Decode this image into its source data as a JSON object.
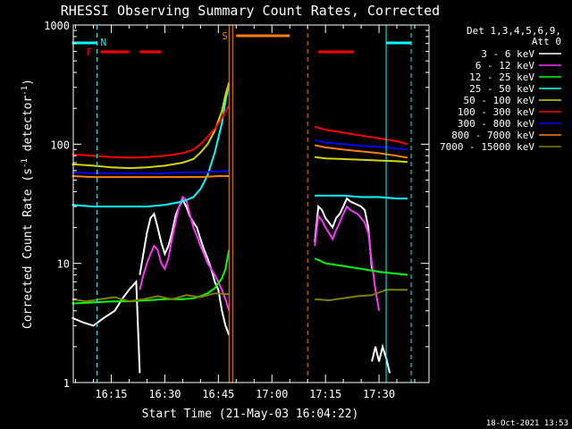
{
  "chart_data": {
    "type": "line",
    "title": "RHESSI Observing Summary Count Rates, Corrected",
    "xlabel": "Start Time (21-May-03 16:04:22)",
    "ylabel": "Corrected Count Rate (s⁻¹ detector⁻¹)",
    "yscale": "log",
    "ylim": [
      1,
      1000
    ],
    "y_ticks": [
      {
        "v": 1,
        "label": "1"
      },
      {
        "v": 10,
        "label": "10"
      },
      {
        "v": 100,
        "label": "100"
      },
      {
        "v": 1000,
        "label": "1000"
      }
    ],
    "xlim": [
      "16:04:22",
      "17:44:00"
    ],
    "x_ticks": [
      "16:15",
      "16:30",
      "16:45",
      "17:00",
      "17:15",
      "17:30"
    ],
    "timestamp": "18-Oct-2021 13:53",
    "legend": {
      "header": [
        "Det 1,3,4,5,6,9,",
        "Att 0"
      ],
      "entries": [
        {
          "name": "3 - 6 keV",
          "color": "#ffffff"
        },
        {
          "name": "6 - 12 keV",
          "color": "#ff33ff"
        },
        {
          "name": "12 - 25 keV",
          "color": "#00ff00"
        },
        {
          "name": "25 - 50 keV",
          "color": "#00ffff"
        },
        {
          "name": "50 - 100 keV",
          "color": "#d4d400"
        },
        {
          "name": "100 - 300 keV",
          "color": "#ff0000"
        },
        {
          "name": "300 - 800 keV",
          "color": "#0000ff"
        },
        {
          "name": "800 - 7000 keV",
          "color": "#ff8000"
        },
        {
          "name": "7000 - 15000 keV",
          "color": "#808000"
        }
      ]
    },
    "flags": {
      "night_label": "N",
      "flare_label": "F",
      "saa_label": "S",
      "night_color": "#00ffff",
      "flare_color": "#ff0000",
      "saa_color": "#ff8000"
    },
    "series": [
      {
        "color": "#ffffff",
        "segments": [
          {
            "x": [
              "16:04",
              "16:07",
              "16:10",
              "16:13",
              "16:16",
              "16:18",
              "16:20",
              "16:22",
              "16:23"
            ],
            "y": [
              3.5,
              3.2,
              3,
              3.5,
              4,
              5,
              6,
              7,
              1.2
            ]
          },
          {
            "x": [
              "16:23",
              "16:24",
              "16:25",
              "16:26",
              "16:27",
              "16:28",
              "16:29",
              "16:30",
              "16:31",
              "16:32",
              "16:33",
              "16:34",
              "16:35",
              "16:36",
              "16:37",
              "16:38",
              "16:39",
              "16:40",
              "16:41",
              "16:42",
              "16:43",
              "16:44",
              "16:45",
              "16:46",
              "16:47",
              "16:48"
            ],
            "y": [
              8,
              12,
              18,
              24,
              26,
              20,
              15,
              12,
              14,
              18,
              25,
              30,
              34,
              30,
              25,
              22,
              20,
              16,
              13,
              11,
              9,
              7,
              6,
              4,
              3,
              2.5
            ]
          },
          {
            "x": [
              "17:12",
              "17:13",
              "17:14",
              "17:15",
              "17:16",
              "17:17",
              "17:18",
              "17:19",
              "17:20",
              "17:21",
              "17:22",
              "17:23",
              "17:24",
              "17:25",
              "17:26",
              "17:27",
              "17:28"
            ],
            "y": [
              15,
              30,
              28,
              24,
              22,
              20,
              24,
              26,
              30,
              35,
              33,
              32,
              31,
              30,
              28,
              20,
              9
            ]
          },
          {
            "x": [
              "17:28",
              "17:29",
              "17:30",
              "17:31",
              "17:32",
              "17:33"
            ],
            "y": [
              1.5,
              2,
              1.5,
              2,
              1.6,
              1.2
            ]
          }
        ]
      },
      {
        "color": "#ff33ff",
        "segments": [
          {
            "x": [
              "16:23",
              "16:24",
              "16:25",
              "16:26",
              "16:27",
              "16:28",
              "16:29",
              "16:30",
              "16:31",
              "16:32",
              "16:33",
              "16:34",
              "16:35",
              "16:36",
              "16:37",
              "16:38",
              "16:39",
              "16:40",
              "16:41",
              "16:42",
              "16:43",
              "16:44",
              "16:45",
              "16:46",
              "16:47",
              "16:48"
            ],
            "y": [
              6,
              8,
              10,
              12,
              14,
              13,
              10,
              9,
              11,
              16,
              22,
              30,
              36,
              34,
              26,
              20,
              17,
              14,
              12,
              10,
              9,
              8,
              7,
              6,
              5,
              4
            ]
          },
          {
            "x": [
              "17:12",
              "17:13",
              "17:14",
              "17:15",
              "17:16",
              "17:17",
              "17:18",
              "17:19",
              "17:20",
              "17:21",
              "17:22",
              "17:23",
              "17:24",
              "17:25",
              "17:26",
              "17:27",
              "17:28",
              "17:29",
              "17:30"
            ],
            "y": [
              14,
              25,
              23,
              20,
              18,
              16,
              19,
              22,
              26,
              30,
              28,
              27,
              26,
              24,
              22,
              18,
              10,
              6,
              4
            ]
          }
        ]
      },
      {
        "color": "#00ff00",
        "segments": [
          {
            "x": [
              "16:04",
              "16:10",
              "16:15",
              "16:20",
              "16:25",
              "16:30",
              "16:35",
              "16:38",
              "16:40",
              "16:42",
              "16:44",
              "16:46",
              "16:47",
              "16:48"
            ],
            "y": [
              4.6,
              4.7,
              4.8,
              4.8,
              4.9,
              5,
              5,
              5.1,
              5.3,
              5.6,
              6.2,
              7.5,
              9,
              13
            ]
          },
          {
            "x": [
              "17:12",
              "17:15",
              "17:20",
              "17:25",
              "17:30",
              "17:35",
              "17:38"
            ],
            "y": [
              11,
              10,
              9.5,
              9,
              8.5,
              8.2,
              8
            ]
          }
        ]
      },
      {
        "color": "#00ffff",
        "segments": [
          {
            "x": [
              "16:04",
              "16:10",
              "16:15",
              "16:20",
              "16:25",
              "16:30",
              "16:35",
              "16:38",
              "16:40",
              "16:42",
              "16:44",
              "16:46",
              "16:47",
              "16:48"
            ],
            "y": [
              31,
              30,
              30,
              30,
              30,
              31,
              33,
              36,
              42,
              55,
              85,
              150,
              230,
              320
            ]
          },
          {
            "x": [
              "17:12",
              "17:15",
              "17:20",
              "17:25",
              "17:30",
              "17:35",
              "17:38"
            ],
            "y": [
              37,
              37,
              37,
              36,
              36,
              35,
              35
            ]
          }
        ]
      },
      {
        "color": "#d4d400",
        "segments": [
          {
            "x": [
              "16:04",
              "16:10",
              "16:15",
              "16:20",
              "16:25",
              "16:30",
              "16:35",
              "16:38",
              "16:40",
              "16:42",
              "16:44",
              "16:46",
              "16:47",
              "16:48"
            ],
            "y": [
              68,
              66,
              64,
              63,
              64,
              66,
              70,
              75,
              85,
              100,
              130,
              190,
              260,
              330
            ]
          },
          {
            "x": [
              "17:12",
              "17:15",
              "17:20",
              "17:25",
              "17:30",
              "17:35",
              "17:38"
            ],
            "y": [
              78,
              76,
              75,
              74,
              73,
              72,
              71
            ]
          }
        ]
      },
      {
        "color": "#ff0000",
        "segments": [
          {
            "x": [
              "16:04",
              "16:10",
              "16:15",
              "16:20",
              "16:25",
              "16:30",
              "16:35",
              "16:38",
              "16:40",
              "16:42",
              "16:44",
              "16:46",
              "16:47",
              "16:48"
            ],
            "y": [
              82,
              80,
              78,
              77,
              78,
              80,
              84,
              90,
              100,
              115,
              135,
              165,
              190,
              210
            ]
          },
          {
            "x": [
              "17:12",
              "17:15",
              "17:20",
              "17:25",
              "17:30",
              "17:35",
              "17:38"
            ],
            "y": [
              140,
              132,
              125,
              118,
              112,
              106,
              100
            ]
          }
        ]
      },
      {
        "color": "#0000ff",
        "segments": [
          {
            "x": [
              "16:04",
              "16:10",
              "16:15",
              "16:20",
              "16:25",
              "16:30",
              "16:35",
              "16:40",
              "16:45",
              "16:48"
            ],
            "y": [
              58,
              57,
              57,
              57,
              57,
              57,
              58,
              58,
              59,
              60
            ]
          },
          {
            "x": [
              "17:12",
              "17:15",
              "17:20",
              "17:25",
              "17:30",
              "17:35",
              "17:38"
            ],
            "y": [
              108,
              103,
              100,
              97,
              95,
              92,
              90
            ]
          }
        ]
      },
      {
        "color": "#ff8000",
        "segments": [
          {
            "x": [
              "16:04",
              "16:10",
              "16:15",
              "16:20",
              "16:25",
              "16:30",
              "16:35",
              "16:40",
              "16:45",
              "16:48"
            ],
            "y": [
              54,
              53,
              53,
              53,
              53,
              53,
              53,
              53,
              54,
              54
            ]
          },
          {
            "x": [
              "17:12",
              "17:15",
              "17:20",
              "17:25",
              "17:30",
              "17:35",
              "17:38"
            ],
            "y": [
              98,
              94,
              90,
              87,
              84,
              80,
              77
            ]
          }
        ]
      },
      {
        "color": "#808000",
        "segments": [
          {
            "x": [
              "16:04",
              "16:08",
              "16:12",
              "16:16",
              "16:20",
              "16:24",
              "16:28",
              "16:32",
              "16:36",
              "16:40",
              "16:44",
              "16:48"
            ],
            "y": [
              5,
              4.8,
              5,
              5.2,
              4.8,
              5,
              5.3,
              5,
              5.4,
              5.2,
              5.6,
              5.5
            ]
          },
          {
            "x": [
              "17:12",
              "17:16",
              "17:20",
              "17:24",
              "17:28",
              "17:32",
              "17:36",
              "17:38"
            ],
            "y": [
              5,
              4.9,
              5.1,
              5.3,
              5.4,
              6,
              6,
              6
            ]
          }
        ]
      }
    ]
  }
}
